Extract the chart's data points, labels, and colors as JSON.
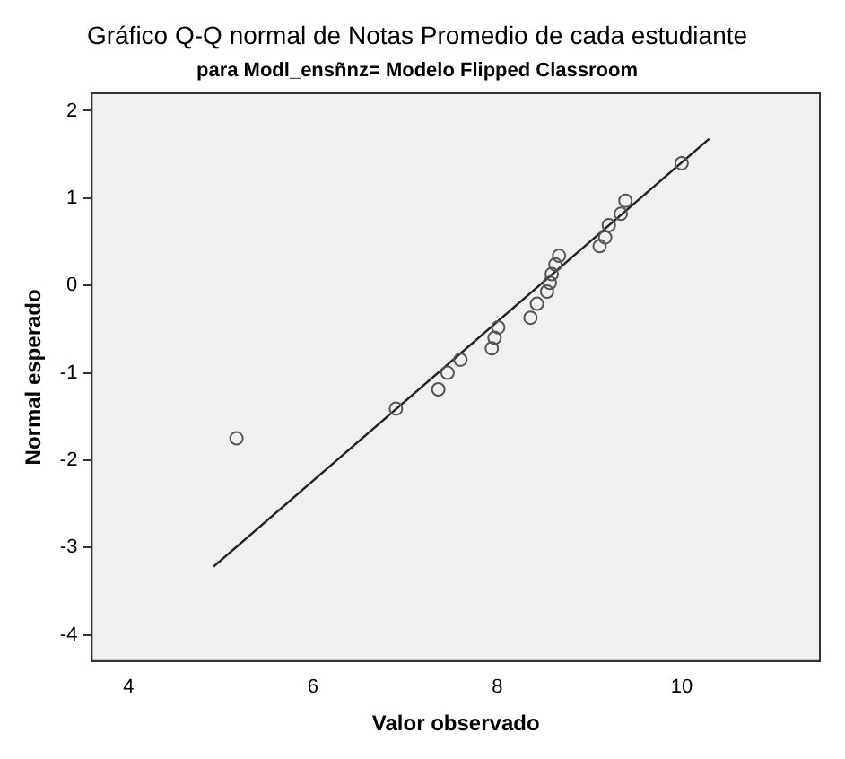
{
  "chart_data": {
    "type": "scatter",
    "title": "Gráfico Q-Q normal de Notas Promedio de cada estudiante",
    "subtitle": "para Modl_ensñnz= Modelo Flipped Classroom",
    "xlabel": "Valor observado",
    "ylabel": "Normal esperado",
    "xlim": [
      3.6,
      11.5
    ],
    "ylim": [
      -4.3,
      2.2
    ],
    "xticks": [
      4,
      6,
      8,
      10
    ],
    "yticks": [
      -4,
      -3,
      -2,
      -1,
      0,
      1,
      2
    ],
    "grid": false,
    "legend": false,
    "marker": "circle",
    "series": [
      {
        "color": "#555555",
        "x": [
          5.17,
          6.9,
          7.36,
          7.46,
          7.6,
          7.94,
          7.97,
          8.01,
          8.36,
          8.43,
          8.54,
          8.57,
          8.59,
          8.63,
          8.67,
          9.11,
          9.17,
          9.21,
          9.34,
          9.39,
          10.0
        ],
        "values": [
          -1.75,
          -1.41,
          -1.19,
          -1.0,
          -0.85,
          -0.72,
          -0.6,
          -0.48,
          -0.37,
          -0.21,
          -0.07,
          0.03,
          0.13,
          0.24,
          0.34,
          0.45,
          0.55,
          0.69,
          0.82,
          0.97,
          1.4
        ]
      },
      {
        "type": "line",
        "color": "#222222",
        "marker": "none",
        "x": [
          4.92,
          10.3
        ],
        "values": [
          -3.22,
          1.68
        ]
      }
    ]
  }
}
